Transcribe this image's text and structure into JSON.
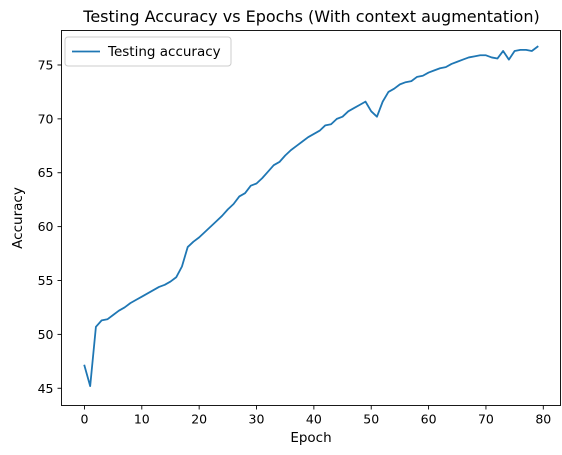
{
  "chart_data": {
    "type": "line",
    "title": "Testing Accuracy vs Epochs (With context augmentation)",
    "xlabel": "Epoch",
    "ylabel": "Accuracy",
    "xlim": [
      -4,
      83
    ],
    "ylim": [
      43.4,
      78.2
    ],
    "xticks": [
      0,
      10,
      20,
      30,
      40,
      50,
      60,
      70,
      80
    ],
    "yticks": [
      45,
      50,
      55,
      60,
      65,
      70,
      75
    ],
    "grid": false,
    "legend_placement": "top-left",
    "colors": {
      "series": "#1f77b4"
    },
    "series": [
      {
        "name": "Testing accuracy",
        "x": [
          0,
          1,
          2,
          3,
          4,
          5,
          6,
          7,
          8,
          9,
          10,
          11,
          12,
          13,
          14,
          15,
          16,
          17,
          18,
          19,
          20,
          21,
          22,
          23,
          24,
          25,
          26,
          27,
          28,
          29,
          30,
          31,
          32,
          33,
          34,
          35,
          36,
          37,
          38,
          39,
          40,
          41,
          42,
          43,
          44,
          45,
          46,
          47,
          48,
          49,
          50,
          51,
          52,
          53,
          54,
          55,
          56,
          57,
          58,
          59,
          60,
          61,
          62,
          63,
          64,
          65,
          66,
          67,
          68,
          69,
          70,
          71,
          72,
          73,
          74,
          75,
          76,
          77,
          78,
          79
        ],
        "values": [
          47.1,
          45.2,
          50.7,
          51.3,
          51.4,
          51.8,
          52.2,
          52.5,
          52.9,
          53.2,
          53.5,
          53.8,
          54.1,
          54.4,
          54.6,
          54.9,
          55.3,
          56.3,
          58.1,
          58.6,
          59.0,
          59.5,
          60.0,
          60.5,
          61.0,
          61.6,
          62.1,
          62.8,
          63.1,
          63.8,
          64.0,
          64.5,
          65.1,
          65.7,
          66.0,
          66.6,
          67.1,
          67.5,
          67.9,
          68.3,
          68.6,
          68.9,
          69.4,
          69.5,
          70.0,
          70.2,
          70.7,
          71.0,
          71.3,
          71.6,
          70.7,
          70.2,
          71.6,
          72.5,
          72.8,
          73.2,
          73.4,
          73.5,
          73.9,
          74.0,
          74.3,
          74.5,
          74.7,
          74.8,
          75.1,
          75.3,
          75.5,
          75.7,
          75.8,
          75.9,
          75.9,
          75.7,
          75.6,
          76.3,
          75.5,
          76.3,
          76.4,
          76.4,
          76.3,
          76.7
        ]
      }
    ]
  }
}
